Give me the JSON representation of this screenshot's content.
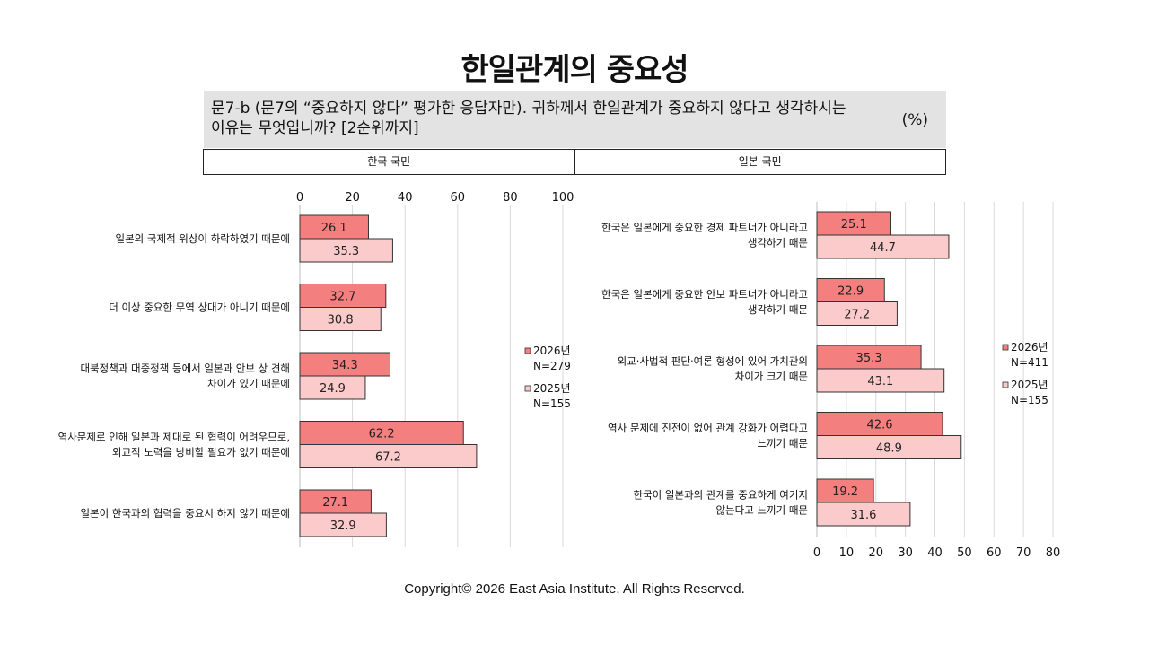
{
  "title": "한일관계의 중요성",
  "question": "문7-b (문7의 “중요하지 않다” 평가한 응답자만). 귀하께서 한일관계가 중요하지 않다고 생각하시는 이유는 무엇입니까? [2순위까지]",
  "unit": "(%)",
  "footer": "Copyright© 2026 East Asia Institute. All Rights Reserved.",
  "colors": {
    "series_2026": "#f47f7f",
    "series_2025": "#fbcaca",
    "grid": "#d9d9d9"
  },
  "chart_data": [
    {
      "type": "bar",
      "orientation": "horizontal",
      "group_label": "한국 국민",
      "axis": "top",
      "xlim": [
        0,
        100
      ],
      "ticks": [
        0,
        20,
        40,
        60,
        80,
        100
      ],
      "categories": [
        [
          "일본의 국제적 위상이 하락하였기 때문에"
        ],
        [
          "더 이상 중요한 무역 상대가 아니기 때문에"
        ],
        [
          "대북정책과 대중정책 등에서 일본과 안보 상 견해",
          "차이가 있기 때문에"
        ],
        [
          "역사문제로 인해 일본과 제대로 된 협력이 어려우므로,",
          "외교적 노력을 낭비할 필요가 없기 때문에"
        ],
        [
          "일본이 한국과의 협력을 중요시 하지 않기 때문에"
        ]
      ],
      "series": [
        {
          "name": "2026년",
          "n": "N=279",
          "values": [
            26.1,
            32.7,
            34.3,
            62.2,
            27.1
          ]
        },
        {
          "name": "2025년",
          "n": "N=155",
          "values": [
            35.3,
            30.8,
            24.9,
            67.2,
            32.9
          ]
        }
      ]
    },
    {
      "type": "bar",
      "orientation": "horizontal",
      "group_label": "일본 국민",
      "axis": "bottom",
      "xlim": [
        0,
        80
      ],
      "ticks": [
        0,
        10,
        20,
        30,
        40,
        50,
        60,
        70,
        80
      ],
      "categories": [
        [
          "한국은 일본에게 중요한 경제 파트너가 아니라고",
          "생각하기 때문"
        ],
        [
          "한국은 일본에게 중요한 안보 파트너가 아니라고",
          "생각하기 때문"
        ],
        [
          "외교·사법적 판단·여론 형성에 있어 가치관의",
          "차이가 크기 때문"
        ],
        [
          "역사 문제에 진전이 없어 관계 강화가 어렵다고",
          "느끼기 때문"
        ],
        [
          "한국이 일본과의 관계를 중요하게 여기지",
          "않는다고 느끼기 때문"
        ]
      ],
      "series": [
        {
          "name": "2026년",
          "n": "N=411",
          "values": [
            25.1,
            22.9,
            35.3,
            42.6,
            19.2
          ]
        },
        {
          "name": "2025년",
          "n": "N=155",
          "values": [
            44.7,
            27.2,
            43.1,
            48.9,
            31.6
          ]
        }
      ]
    }
  ]
}
